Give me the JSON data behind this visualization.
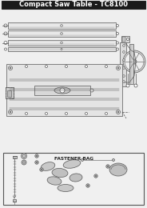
{
  "title": "Compact Saw Table - TC8100",
  "title_bg": "#1a1a1a",
  "title_color": "#ffffff",
  "title_fontsize": 6.0,
  "bg_color": "#efefef",
  "line_color": "#555555",
  "line_color_dark": "#333333",
  "fastener_label": "FASTENER BAG",
  "fastener_fontsize": 4.2,
  "fig_width": 1.84,
  "fig_height": 2.6,
  "dpi": 100
}
